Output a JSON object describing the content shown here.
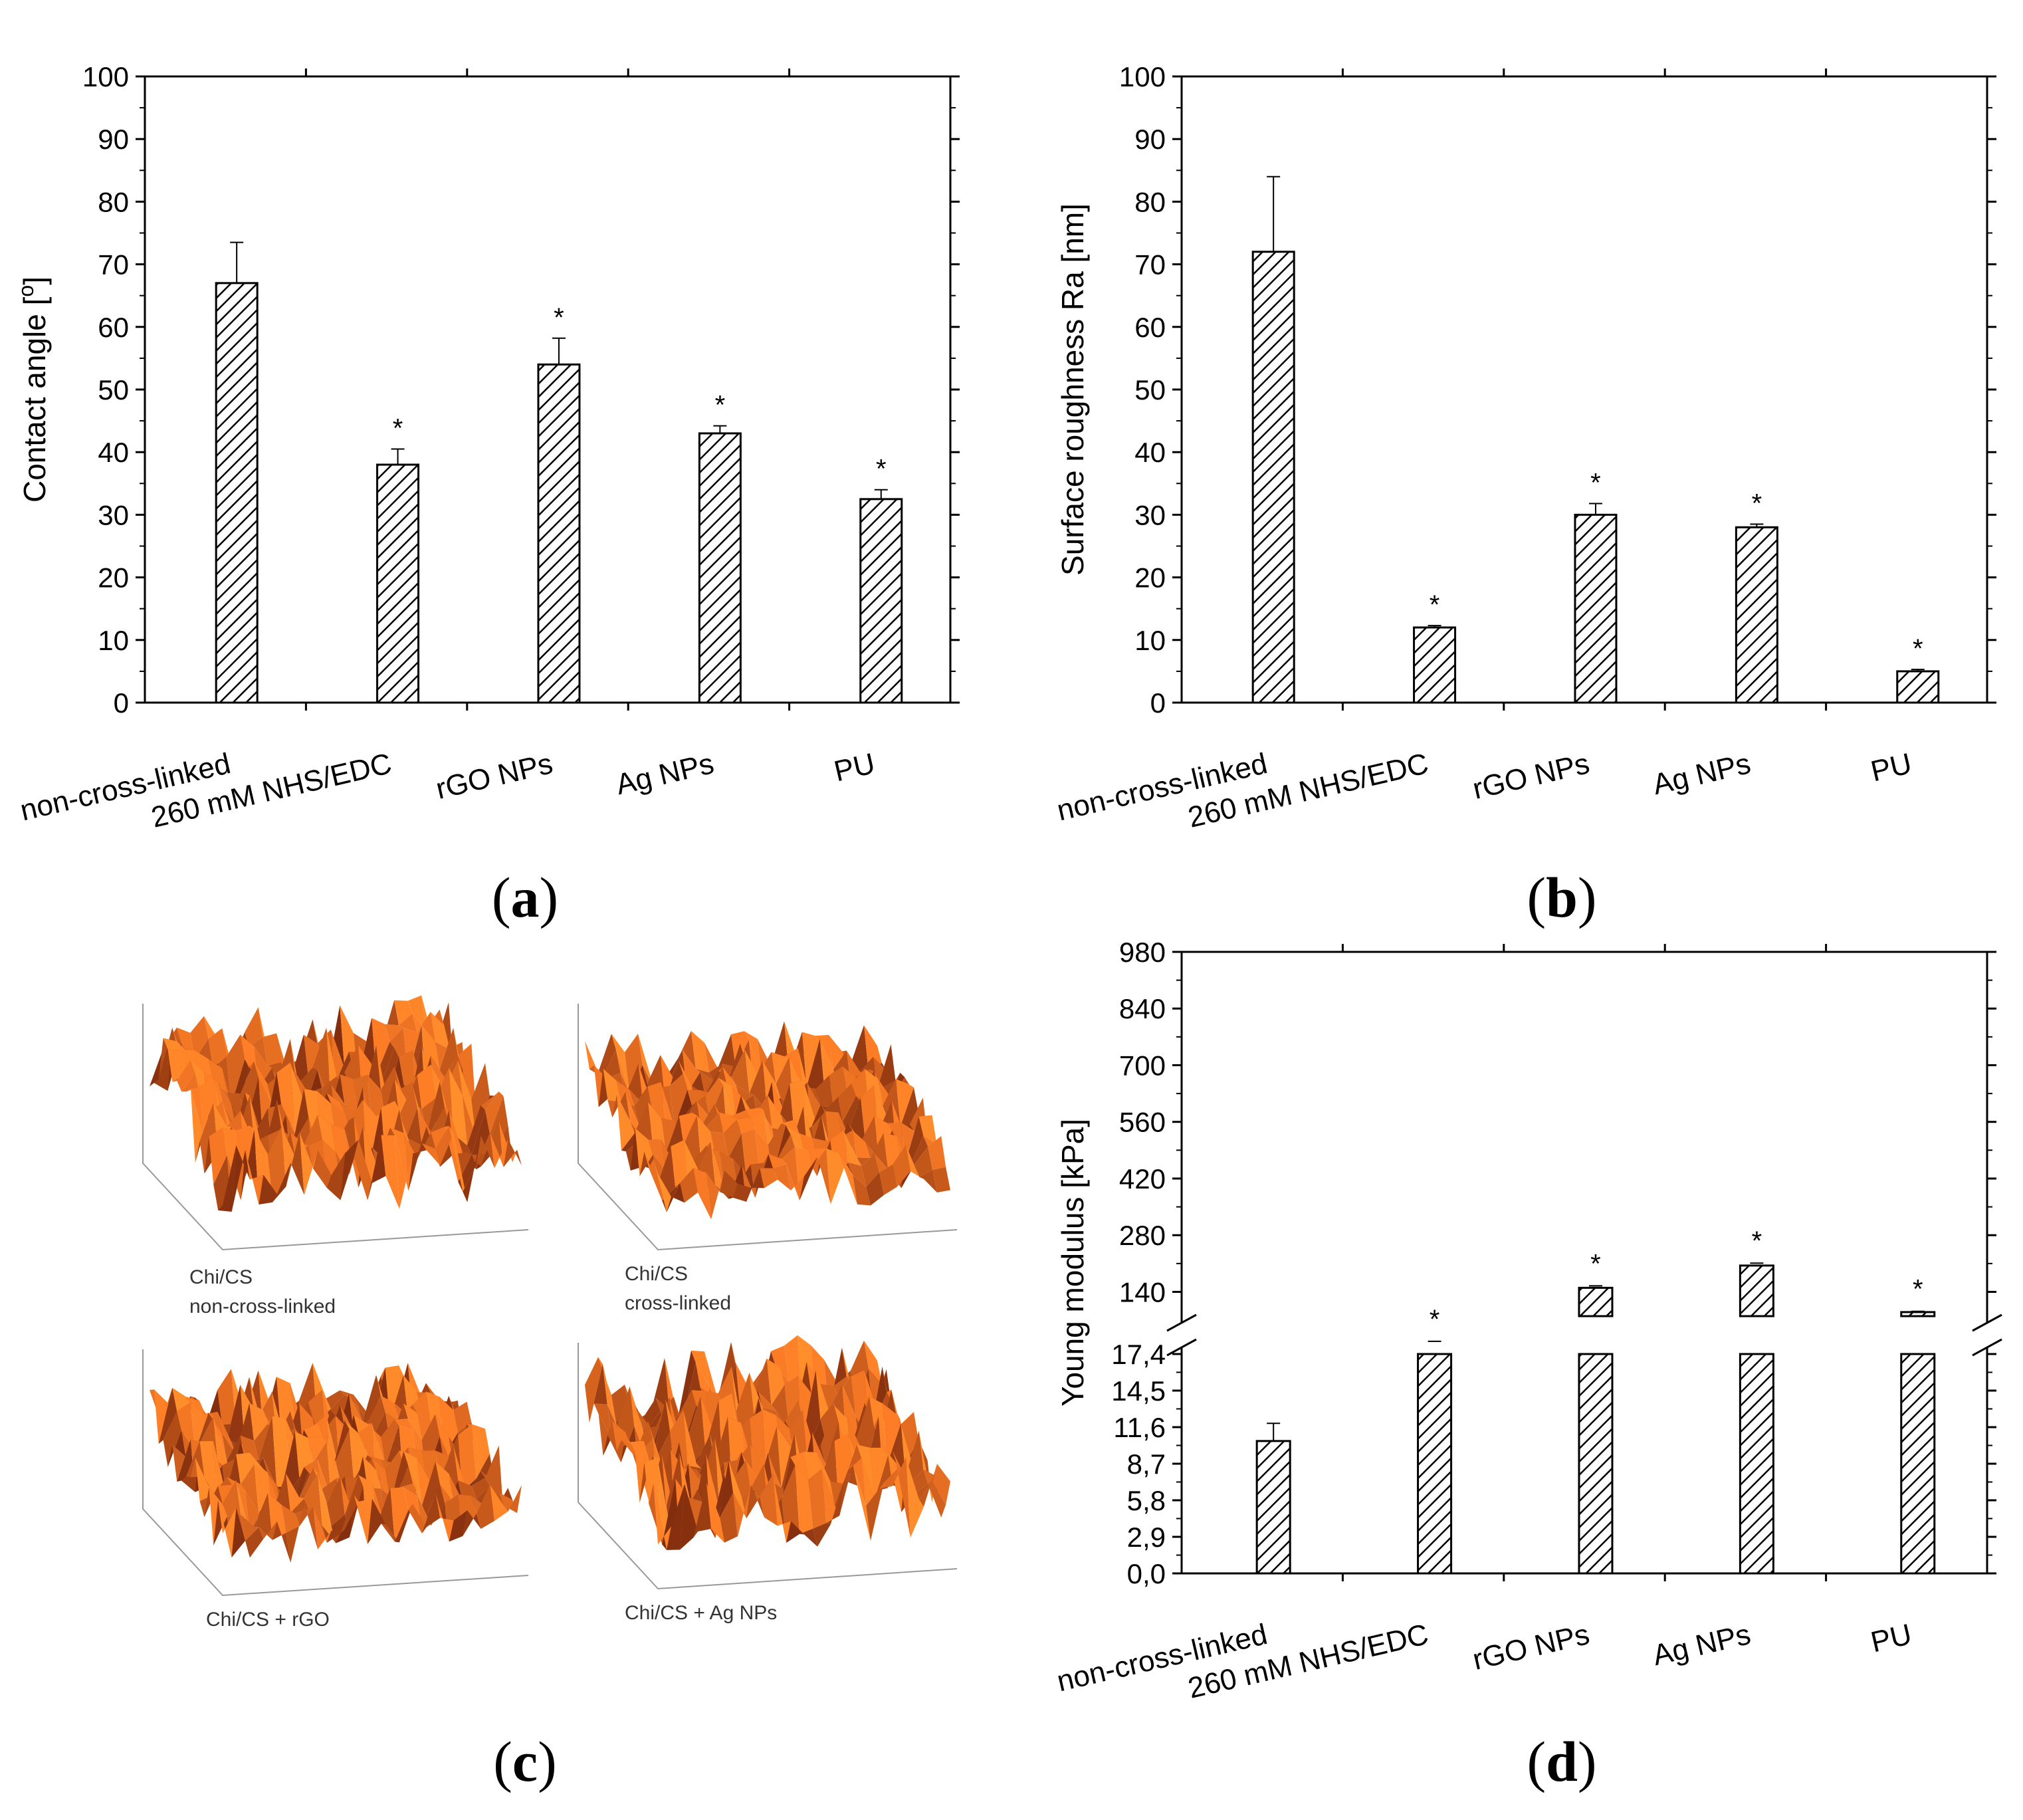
{
  "panel_labels": {
    "a": "a",
    "b": "b",
    "c": "c",
    "d": "d"
  },
  "afm_captions": [
    {
      "line1": "Chi/CS",
      "line2": "non-cross-linked"
    },
    {
      "line1": "Chi/CS",
      "line2": "cross-linked"
    },
    {
      "line1": "Chi/CS + rGO",
      "line2": ""
    },
    {
      "line1": "Chi/CS + Ag NPs",
      "line2": ""
    }
  ],
  "significance_marker": "*",
  "chart_data": [
    {
      "id": "a",
      "type": "bar",
      "title": "",
      "xlabel": "",
      "ylabel": "Contact angle [°]",
      "ylabel_parts": {
        "text": "Contact angle [",
        "sup": "o",
        "close": "]"
      },
      "categories": [
        "non-cross-linked",
        "260 mM NHS/EDC",
        "rGO NPs",
        "Ag NPs",
        "PU"
      ],
      "values": [
        67,
        38,
        54,
        43,
        32.5
      ],
      "errors": [
        6.5,
        2.5,
        4.2,
        1.2,
        1.5
      ],
      "significant": [
        false,
        true,
        true,
        true,
        true
      ],
      "ylim": [
        0,
        100
      ],
      "yticks": [
        0,
        10,
        20,
        30,
        40,
        50,
        60,
        70,
        80,
        90,
        100
      ],
      "ytick_labels": [
        "0",
        "10",
        "20",
        "30",
        "40",
        "50",
        "60",
        "70",
        "80",
        "90",
        "100"
      ]
    },
    {
      "id": "b",
      "type": "bar",
      "title": "",
      "xlabel": "",
      "ylabel": "Surface roughness Ra [nm]",
      "categories": [
        "non-cross-linked",
        "260 mM NHS/EDC",
        "rGO NPs",
        "Ag NPs",
        "PU"
      ],
      "values": [
        72,
        12,
        30,
        28,
        5
      ],
      "errors": [
        12,
        0.3,
        1.8,
        0.5,
        0.3
      ],
      "significant": [
        false,
        true,
        true,
        true,
        true
      ],
      "ylim": [
        0,
        100
      ],
      "yticks": [
        0,
        10,
        20,
        30,
        40,
        50,
        60,
        70,
        80,
        90,
        100
      ],
      "ytick_labels": [
        "0",
        "10",
        "20",
        "30",
        "40",
        "50",
        "60",
        "70",
        "80",
        "90",
        "100"
      ]
    },
    {
      "id": "d",
      "type": "bar",
      "title": "",
      "xlabel": "",
      "ylabel": "Young modulus [kPa]",
      "axis_break": true,
      "categories": [
        "non-cross-linked",
        "260 mM NHS/EDC",
        "rGO NPs",
        "Ag NPs",
        "PU"
      ],
      "values": [
        10.5,
        17.5,
        150,
        205,
        90
      ],
      "errors": [
        1.4,
        0.2,
        5,
        6,
        2
      ],
      "significant": [
        false,
        true,
        true,
        true,
        true
      ],
      "lower_segment": {
        "ylim": [
          0,
          17.4
        ],
        "ticks": [
          0,
          2.9,
          5.8,
          8.7,
          11.6,
          14.5,
          17.4
        ],
        "tick_labels": [
          "0,0",
          "2,9",
          "5,8",
          "8,7",
          "11,6",
          "14,5",
          "17,4"
        ]
      },
      "upper_segment": {
        "ylim": [
          80,
          980
        ],
        "ticks": [
          140,
          280,
          420,
          560,
          700,
          840,
          980
        ],
        "tick_labels": [
          "140",
          "280",
          "420",
          "560",
          "700",
          "840",
          "980"
        ]
      }
    }
  ]
}
